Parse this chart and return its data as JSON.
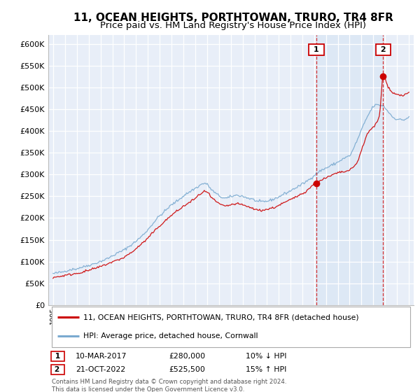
{
  "title": "11, OCEAN HEIGHTS, PORTHTOWAN, TRURO, TR4 8FR",
  "subtitle": "Price paid vs. HM Land Registry's House Price Index (HPI)",
  "ylim": [
    0,
    620000
  ],
  "yticks": [
    0,
    50000,
    100000,
    150000,
    200000,
    250000,
    300000,
    350000,
    400000,
    450000,
    500000,
    550000,
    600000
  ],
  "legend_label_red": "11, OCEAN HEIGHTS, PORTHTOWAN, TRURO, TR4 8FR (detached house)",
  "legend_label_blue": "HPI: Average price, detached house, Cornwall",
  "annotation1_date": "10-MAR-2017",
  "annotation1_price": "£280,000",
  "annotation1_hpi": "10% ↓ HPI",
  "annotation2_date": "21-OCT-2022",
  "annotation2_price": "£525,500",
  "annotation2_hpi": "15% ↑ HPI",
  "footnote": "Contains HM Land Registry data © Crown copyright and database right 2024.\nThis data is licensed under the Open Government Licence v3.0.",
  "background_color": "#ffffff",
  "plot_bg_color": "#e8eef8",
  "grid_color": "#ffffff",
  "red_color": "#cc0000",
  "blue_color": "#7aaad0",
  "shade_color": "#dde8f5",
  "title_fontsize": 11,
  "subtitle_fontsize": 9.5,
  "sale1_year": 2017.2,
  "sale1_value": 280000,
  "sale2_year": 2022.83,
  "sale2_value": 525500
}
